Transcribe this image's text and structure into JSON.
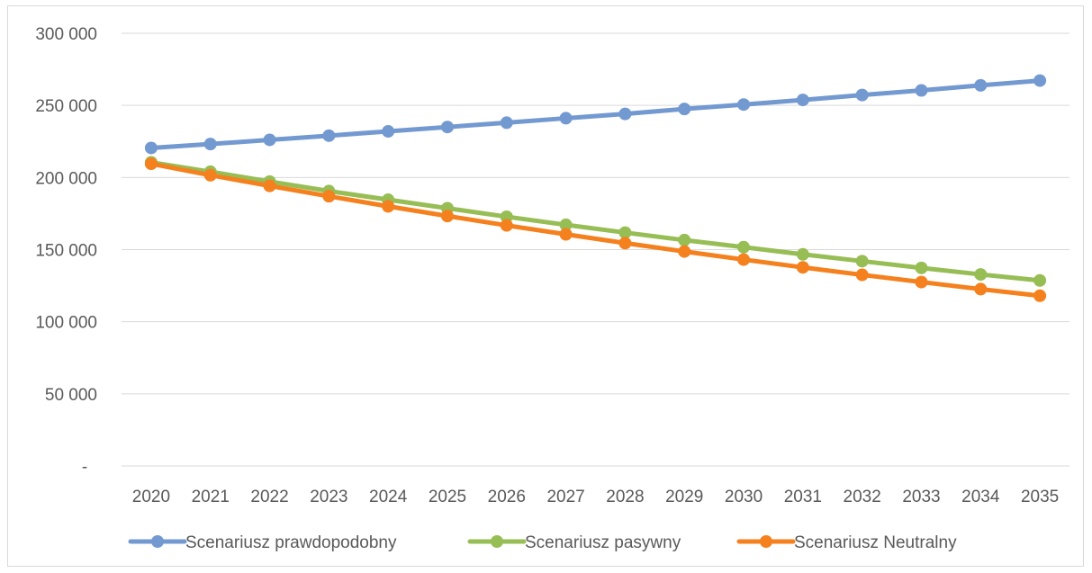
{
  "chart_data": {
    "type": "line",
    "title": "",
    "xlabel": "",
    "ylabel": "",
    "categories": [
      "2020",
      "2021",
      "2022",
      "2023",
      "2024",
      "2025",
      "2026",
      "2027",
      "2028",
      "2029",
      "2030",
      "2031",
      "2032",
      "2033",
      "2034",
      "2035"
    ],
    "ylim": [
      0,
      300000
    ],
    "y_ticks": [
      0,
      50000,
      100000,
      150000,
      200000,
      250000,
      300000
    ],
    "y_tick_labels": [
      "-",
      "50 000",
      "100 000",
      "150 000",
      "200 000",
      "250 000",
      "300 000"
    ],
    "grid": true,
    "legend_position": "bottom",
    "series": [
      {
        "name": "Scenariusz prawdopodobny",
        "color": "#7399d1",
        "values": [
          220500,
          223200,
          226100,
          229000,
          232000,
          235000,
          238000,
          241100,
          244100,
          247500,
          250600,
          253800,
          257200,
          260400,
          263900,
          267200
        ]
      },
      {
        "name": "Scenariusz pasywny",
        "color": "#97bd55",
        "values": [
          210500,
          204000,
          197200,
          190600,
          184600,
          178700,
          172800,
          167200,
          161800,
          156600,
          151700,
          146700,
          142000,
          137300,
          132800,
          128600
        ]
      },
      {
        "name": "Scenariusz Neutralny",
        "color": "#f5801e",
        "values": [
          209500,
          201600,
          194200,
          187000,
          180000,
          173300,
          166800,
          160600,
          154500,
          148700,
          143100,
          137700,
          132500,
          127500,
          122600,
          118000
        ]
      }
    ]
  }
}
